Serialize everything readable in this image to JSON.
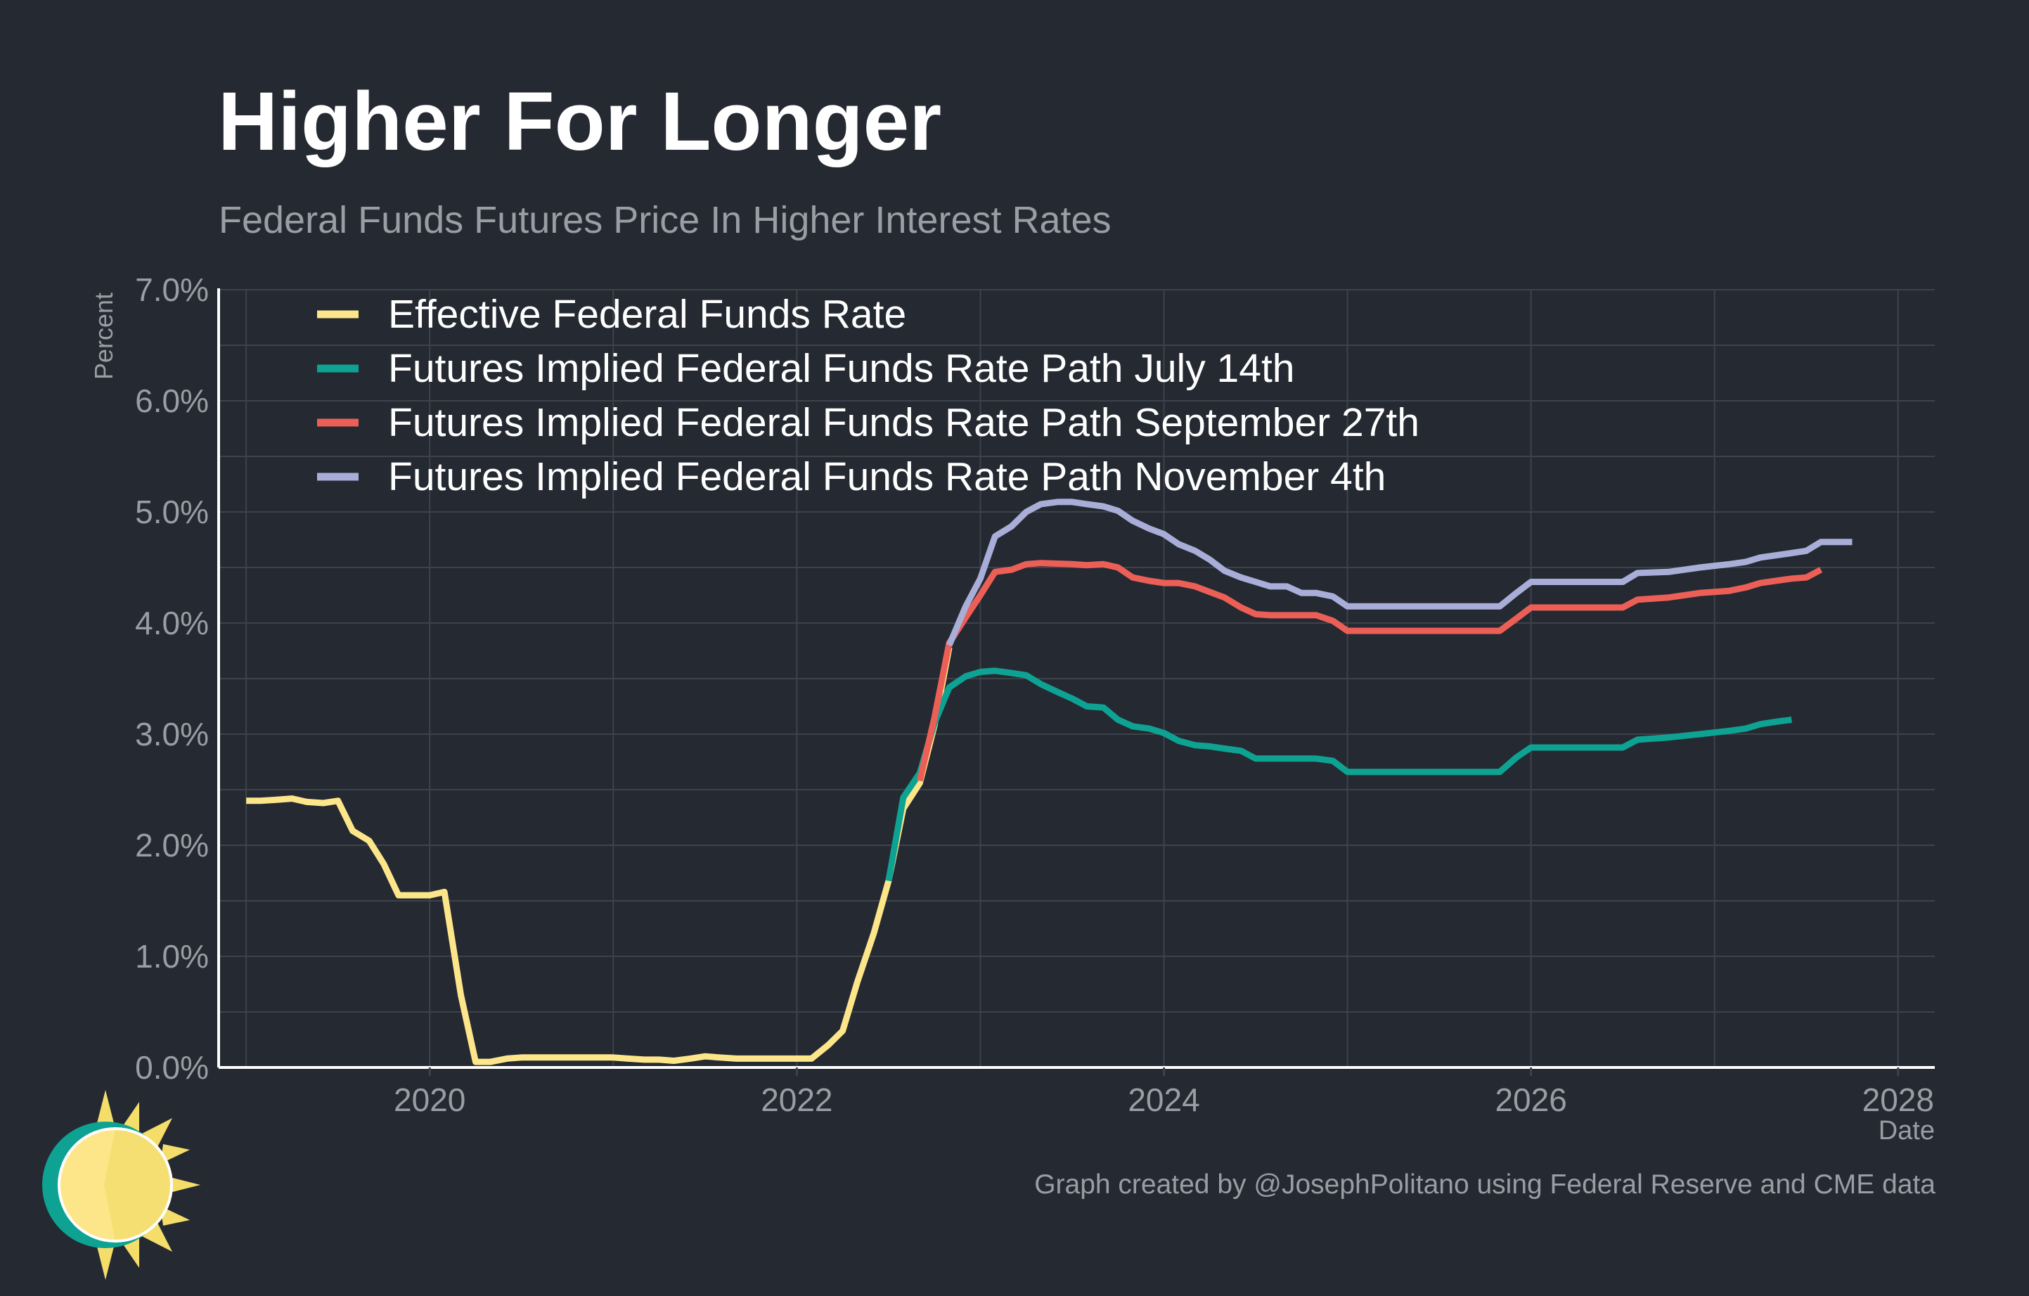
{
  "title": "Higher For Longer",
  "subtitle": "Federal Funds Futures Price In Higher Interest Rates",
  "caption": "Graph created by @JosephPolitano using Federal Reserve and CME data",
  "colors": {
    "background": "#252932",
    "grid": "#3d424b",
    "axis": "#ffffff",
    "effective": "#fde68a",
    "july": "#0ea293",
    "september": "#ec5f57",
    "november": "#a9aed8"
  },
  "chart_data": {
    "type": "line",
    "xlabel": "Date",
    "ylabel": "Percent",
    "xlim": [
      2018.85,
      2028.2
    ],
    "ylim": [
      0,
      7
    ],
    "x_ticks": [
      2020,
      2022,
      2024,
      2026,
      2028
    ],
    "x_tick_labels": [
      "2020",
      "2022",
      "2024",
      "2026",
      "2028"
    ],
    "y_ticks": [
      0,
      1,
      2,
      3,
      4,
      5,
      6,
      7
    ],
    "y_tick_labels": [
      "0.0%",
      "1.0%",
      "2.0%",
      "3.0%",
      "4.0%",
      "5.0%",
      "6.0%",
      "7.0%"
    ],
    "grid": true,
    "legend_position": "top-left",
    "series": [
      {
        "name": "Effective Federal Funds Rate",
        "color": "#fde68a",
        "points": [
          [
            2019.0,
            2.4
          ],
          [
            2019.08,
            2.4
          ],
          [
            2019.17,
            2.41
          ],
          [
            2019.25,
            2.42
          ],
          [
            2019.33,
            2.39
          ],
          [
            2019.42,
            2.38
          ],
          [
            2019.5,
            2.4
          ],
          [
            2019.58,
            2.13
          ],
          [
            2019.67,
            2.04
          ],
          [
            2019.75,
            1.83
          ],
          [
            2019.83,
            1.55
          ],
          [
            2019.92,
            1.55
          ],
          [
            2020.0,
            1.55
          ],
          [
            2020.08,
            1.58
          ],
          [
            2020.17,
            0.65
          ],
          [
            2020.25,
            0.05
          ],
          [
            2020.33,
            0.05
          ],
          [
            2020.42,
            0.08
          ],
          [
            2020.5,
            0.09
          ],
          [
            2020.58,
            0.09
          ],
          [
            2020.67,
            0.09
          ],
          [
            2020.75,
            0.09
          ],
          [
            2020.83,
            0.09
          ],
          [
            2020.92,
            0.09
          ],
          [
            2021.0,
            0.09
          ],
          [
            2021.08,
            0.08
          ],
          [
            2021.17,
            0.07
          ],
          [
            2021.25,
            0.07
          ],
          [
            2021.33,
            0.06
          ],
          [
            2021.42,
            0.08
          ],
          [
            2021.5,
            0.1
          ],
          [
            2021.58,
            0.09
          ],
          [
            2021.67,
            0.08
          ],
          [
            2021.75,
            0.08
          ],
          [
            2021.83,
            0.08
          ],
          [
            2021.92,
            0.08
          ],
          [
            2022.0,
            0.08
          ],
          [
            2022.08,
            0.08
          ],
          [
            2022.17,
            0.2
          ],
          [
            2022.25,
            0.33
          ],
          [
            2022.33,
            0.77
          ],
          [
            2022.42,
            1.21
          ],
          [
            2022.5,
            1.68
          ],
          [
            2022.58,
            2.33
          ],
          [
            2022.67,
            2.56
          ],
          [
            2022.75,
            3.08
          ],
          [
            2022.83,
            3.78
          ]
        ]
      },
      {
        "name": "Futures Implied Federal Funds Rate Path July 14th",
        "color": "#0ea293",
        "points": [
          [
            2022.5,
            1.68
          ],
          [
            2022.58,
            2.43
          ],
          [
            2022.67,
            2.65
          ],
          [
            2022.75,
            3.1
          ],
          [
            2022.83,
            3.42
          ],
          [
            2022.92,
            3.52
          ],
          [
            2023.0,
            3.56
          ],
          [
            2023.08,
            3.57
          ],
          [
            2023.17,
            3.55
          ],
          [
            2023.25,
            3.53
          ],
          [
            2023.33,
            3.45
          ],
          [
            2023.42,
            3.38
          ],
          [
            2023.5,
            3.32
          ],
          [
            2023.58,
            3.25
          ],
          [
            2023.67,
            3.24
          ],
          [
            2023.75,
            3.13
          ],
          [
            2023.83,
            3.07
          ],
          [
            2023.92,
            3.05
          ],
          [
            2024.0,
            3.01
          ],
          [
            2024.08,
            2.94
          ],
          [
            2024.17,
            2.9
          ],
          [
            2024.25,
            2.89
          ],
          [
            2024.33,
            2.87
          ],
          [
            2024.42,
            2.85
          ],
          [
            2024.5,
            2.78
          ],
          [
            2024.58,
            2.78
          ],
          [
            2024.67,
            2.78
          ],
          [
            2024.75,
            2.78
          ],
          [
            2024.83,
            2.78
          ],
          [
            2024.92,
            2.76
          ],
          [
            2025.0,
            2.66
          ],
          [
            2025.25,
            2.66
          ],
          [
            2025.5,
            2.66
          ],
          [
            2025.75,
            2.66
          ],
          [
            2025.83,
            2.66
          ],
          [
            2025.92,
            2.79
          ],
          [
            2026.0,
            2.88
          ],
          [
            2026.25,
            2.88
          ],
          [
            2026.5,
            2.88
          ],
          [
            2026.58,
            2.95
          ],
          [
            2026.75,
            2.97
          ],
          [
            2026.92,
            3.0
          ],
          [
            2027.08,
            3.03
          ],
          [
            2027.17,
            3.05
          ],
          [
            2027.25,
            3.09
          ],
          [
            2027.33,
            3.11
          ],
          [
            2027.42,
            3.13
          ]
        ]
      },
      {
        "name": "Futures Implied Federal Funds Rate Path September 27th",
        "color": "#ec5f57",
        "points": [
          [
            2022.67,
            2.58
          ],
          [
            2022.75,
            3.15
          ],
          [
            2022.83,
            3.82
          ],
          [
            2022.92,
            4.05
          ],
          [
            2023.0,
            4.25
          ],
          [
            2023.08,
            4.46
          ],
          [
            2023.17,
            4.48
          ],
          [
            2023.25,
            4.53
          ],
          [
            2023.33,
            4.54
          ],
          [
            2023.5,
            4.53
          ],
          [
            2023.58,
            4.52
          ],
          [
            2023.67,
            4.53
          ],
          [
            2023.75,
            4.5
          ],
          [
            2023.83,
            4.41
          ],
          [
            2023.92,
            4.38
          ],
          [
            2024.0,
            4.36
          ],
          [
            2024.08,
            4.36
          ],
          [
            2024.17,
            4.33
          ],
          [
            2024.25,
            4.28
          ],
          [
            2024.33,
            4.23
          ],
          [
            2024.42,
            4.14
          ],
          [
            2024.5,
            4.08
          ],
          [
            2024.58,
            4.07
          ],
          [
            2024.67,
            4.07
          ],
          [
            2024.83,
            4.07
          ],
          [
            2024.92,
            4.02
          ],
          [
            2025.0,
            3.93
          ],
          [
            2025.25,
            3.93
          ],
          [
            2025.5,
            3.93
          ],
          [
            2025.75,
            3.93
          ],
          [
            2025.83,
            3.93
          ],
          [
            2025.92,
            4.04
          ],
          [
            2026.0,
            4.14
          ],
          [
            2026.25,
            4.14
          ],
          [
            2026.5,
            4.14
          ],
          [
            2026.58,
            4.21
          ],
          [
            2026.75,
            4.23
          ],
          [
            2026.92,
            4.27
          ],
          [
            2027.08,
            4.29
          ],
          [
            2027.17,
            4.32
          ],
          [
            2027.25,
            4.36
          ],
          [
            2027.42,
            4.4
          ],
          [
            2027.5,
            4.41
          ],
          [
            2027.58,
            4.48
          ]
        ]
      },
      {
        "name": "Futures Implied Federal Funds Rate Path November 4th",
        "color": "#a9aed8",
        "points": [
          [
            2022.83,
            3.8
          ],
          [
            2022.92,
            4.15
          ],
          [
            2023.0,
            4.4
          ],
          [
            2023.08,
            4.78
          ],
          [
            2023.17,
            4.87
          ],
          [
            2023.25,
            5.0
          ],
          [
            2023.33,
            5.07
          ],
          [
            2023.42,
            5.09
          ],
          [
            2023.5,
            5.09
          ],
          [
            2023.58,
            5.07
          ],
          [
            2023.67,
            5.05
          ],
          [
            2023.75,
            5.01
          ],
          [
            2023.83,
            4.92
          ],
          [
            2023.92,
            4.85
          ],
          [
            2024.0,
            4.8
          ],
          [
            2024.08,
            4.71
          ],
          [
            2024.17,
            4.65
          ],
          [
            2024.25,
            4.57
          ],
          [
            2024.33,
            4.47
          ],
          [
            2024.42,
            4.41
          ],
          [
            2024.5,
            4.37
          ],
          [
            2024.58,
            4.33
          ],
          [
            2024.67,
            4.33
          ],
          [
            2024.75,
            4.27
          ],
          [
            2024.83,
            4.27
          ],
          [
            2024.92,
            4.24
          ],
          [
            2025.0,
            4.15
          ],
          [
            2025.25,
            4.15
          ],
          [
            2025.5,
            4.15
          ],
          [
            2025.75,
            4.15
          ],
          [
            2025.83,
            4.15
          ],
          [
            2025.92,
            4.27
          ],
          [
            2026.0,
            4.37
          ],
          [
            2026.25,
            4.37
          ],
          [
            2026.5,
            4.37
          ],
          [
            2026.58,
            4.45
          ],
          [
            2026.75,
            4.46
          ],
          [
            2026.92,
            4.5
          ],
          [
            2027.08,
            4.53
          ],
          [
            2027.17,
            4.55
          ],
          [
            2027.25,
            4.59
          ],
          [
            2027.42,
            4.63
          ],
          [
            2027.5,
            4.65
          ],
          [
            2027.58,
            4.73
          ],
          [
            2027.67,
            4.73
          ],
          [
            2027.75,
            4.73
          ]
        ]
      }
    ]
  }
}
